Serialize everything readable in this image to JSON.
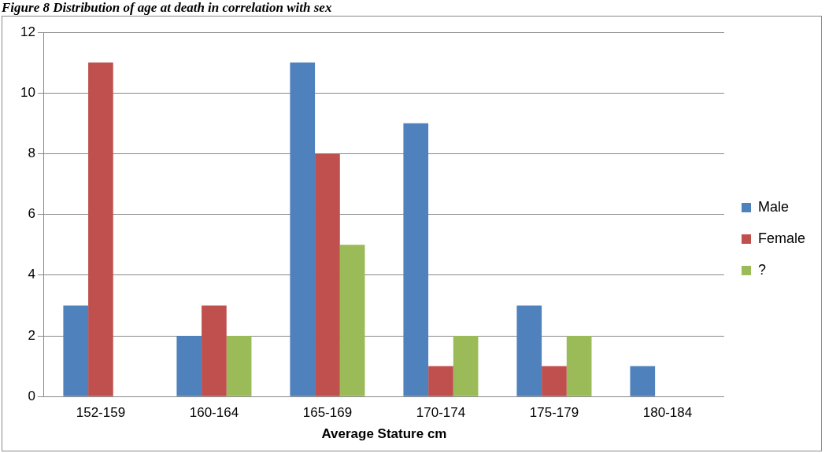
{
  "chart_data": {
    "type": "bar",
    "title": "Figure 8 Distribution of age at death in correlation with sex",
    "xlabel": "Average Stature cm",
    "categories": [
      "152-159",
      "160-164",
      "165-169",
      "170-174",
      "175-179",
      "180-184"
    ],
    "series": [
      {
        "name": "Male",
        "color": "#4f81bd",
        "values": [
          3,
          2,
          11,
          9,
          3,
          1
        ]
      },
      {
        "name": "Female",
        "color": "#c0504d",
        "values": [
          11,
          3,
          8,
          1,
          1,
          0
        ]
      },
      {
        "name": "?",
        "color": "#9bbb59",
        "values": [
          0,
          2,
          5,
          2,
          2,
          0
        ]
      }
    ],
    "ylim": [
      0,
      12
    ],
    "yticks": [
      0,
      2,
      4,
      6,
      8,
      10,
      12
    ],
    "grid": "y",
    "legend": "right"
  }
}
